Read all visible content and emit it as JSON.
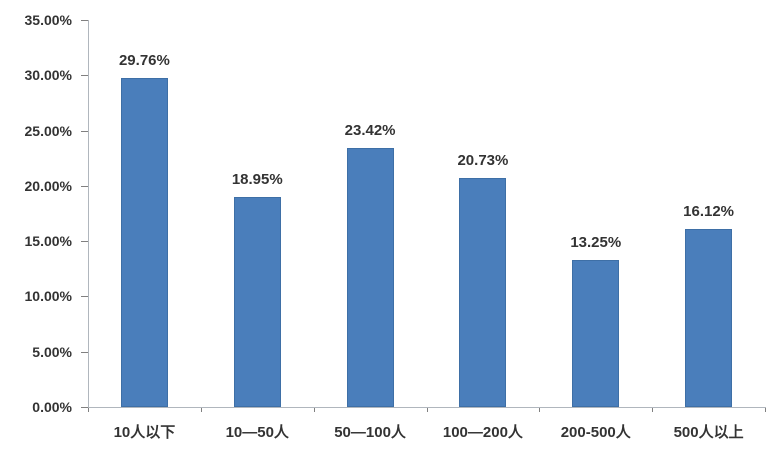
{
  "chart_data": {
    "type": "bar",
    "title": "",
    "xlabel": "",
    "ylabel": "",
    "categories": [
      "10人以下",
      "10—50人",
      "50—100人",
      "100—200人",
      "200-500人",
      "500人以上"
    ],
    "values": [
      29.76,
      18.95,
      23.42,
      20.73,
      13.25,
      16.12
    ],
    "value_labels": [
      "29.76%",
      "18.95%",
      "23.42%",
      "20.73%",
      "13.25%",
      "16.12%"
    ],
    "ylim": [
      0,
      35
    ],
    "ytick_step": 5,
    "ytick_labels": [
      "0.00%",
      "5.00%",
      "10.00%",
      "15.00%",
      "20.00%",
      "25.00%",
      "30.00%",
      "35.00%"
    ],
    "grid": false,
    "legend": false,
    "colors": {
      "bar_fill": "#4a7ebb",
      "bar_border": "#3e6fa6",
      "axis_line": "#b0b6bd",
      "tick_mark": "#808080",
      "text": "#333333",
      "background": "#ffffff"
    }
  }
}
